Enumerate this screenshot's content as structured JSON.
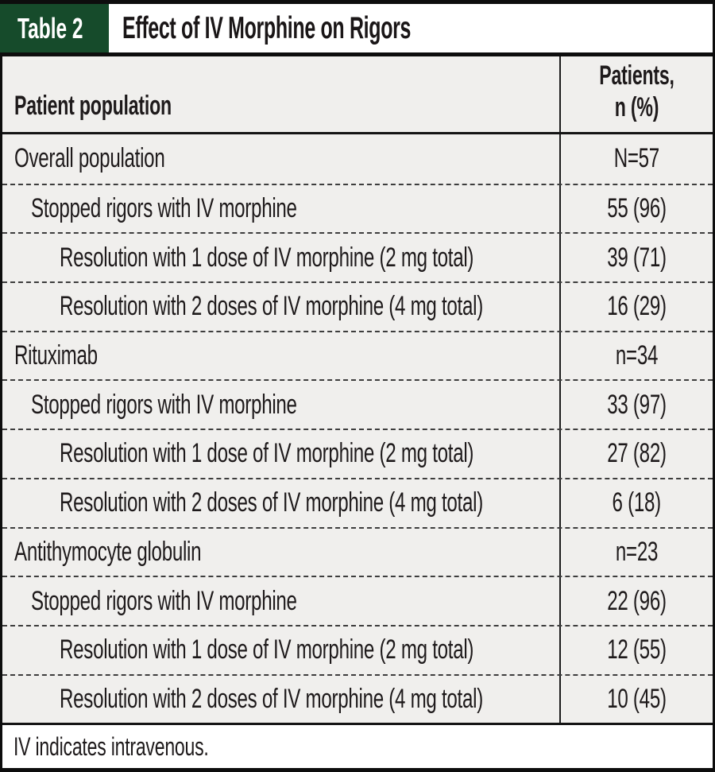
{
  "colors": {
    "label_green": "#164b2b",
    "body_gray": "#f0efed",
    "text_black": "#1e1a1b"
  },
  "table": {
    "label": "Table 2",
    "title": "Effect of IV Morphine on Rigors",
    "columns": {
      "population": "Patient population",
      "patients": "Patients,\nn (%)"
    },
    "rows": [
      {
        "label": "Overall population",
        "value": "N=57",
        "indent": 0
      },
      {
        "label": "Stopped rigors with IV morphine",
        "value": "55 (96)",
        "indent": 1
      },
      {
        "label": "Resolution with 1 dose of IV morphine (2 mg total)",
        "value": "39 (71)",
        "indent": 2
      },
      {
        "label": "Resolution with 2 doses of IV morphine (4 mg total)",
        "value": "16 (29)",
        "indent": 2
      },
      {
        "label": "Rituximab",
        "value": "n=34",
        "indent": 0
      },
      {
        "label": "Stopped rigors with IV morphine",
        "value": "33 (97)",
        "indent": 1
      },
      {
        "label": "Resolution with 1 dose of IV morphine (2 mg total)",
        "value": "27 (82)",
        "indent": 2
      },
      {
        "label": "Resolution with 2 doses of IV morphine (4 mg total)",
        "value": "6 (18)",
        "indent": 2
      },
      {
        "label": "Antithymocyte globulin",
        "value": "n=23",
        "indent": 0
      },
      {
        "label": "Stopped rigors with IV morphine",
        "value": "22 (96)",
        "indent": 1
      },
      {
        "label": "Resolution with 1 dose of IV morphine (2 mg total)",
        "value": "12 (55)",
        "indent": 2
      },
      {
        "label": "Resolution with 2 doses of IV morphine (4 mg total)",
        "value": "10 (45)",
        "indent": 2
      }
    ],
    "footnote": "IV indicates intravenous."
  }
}
